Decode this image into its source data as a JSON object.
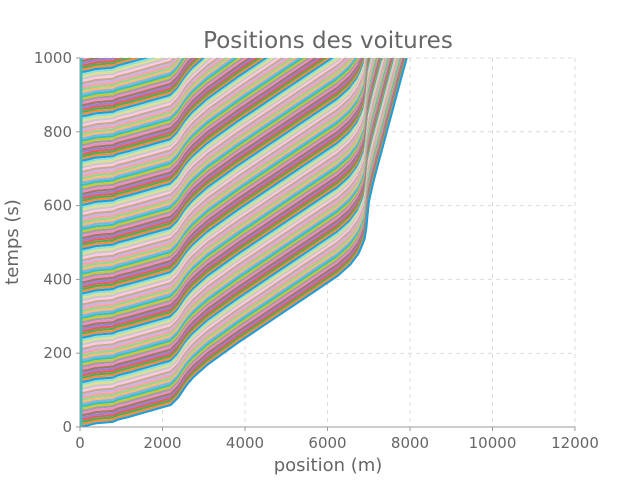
{
  "chart_data": {
    "type": "line",
    "title": "Positions des voitures",
    "xlabel": "position (m)",
    "ylabel": "temps (s)",
    "xlim": [
      0,
      12000
    ],
    "ylim": [
      0,
      1000
    ],
    "x_ticks": [
      0,
      2000,
      4000,
      6000,
      8000,
      10000,
      12000
    ],
    "y_ticks": [
      0,
      200,
      400,
      600,
      800,
      1000
    ],
    "x_tick_labels": [
      "0",
      "2000",
      "4000",
      "6000",
      "8000",
      "10000",
      "12000"
    ],
    "y_tick_labels": [
      "0",
      "200",
      "400",
      "600",
      "800",
      "1000"
    ],
    "grid": true,
    "legend": "none",
    "series_count": 180,
    "series_spacing_time": 6,
    "trajectory_template": {
      "time": [
        0,
        2,
        5,
        10,
        14,
        20,
        28,
        36,
        44,
        52,
        60,
        70,
        80,
        90,
        100,
        110,
        120,
        135,
        150,
        170,
        190,
        210,
        230,
        260,
        290,
        320,
        350,
        380,
        410,
        440,
        470,
        490,
        510,
        540,
        575,
        610,
        660,
        710,
        760,
        810,
        860,
        910,
        960,
        1000
      ],
      "position": [
        0,
        60,
        200,
        380,
        800,
        920,
        1200,
        1450,
        1700,
        1950,
        2200,
        2290,
        2380,
        2440,
        2500,
        2560,
        2630,
        2750,
        2900,
        3100,
        3350,
        3600,
        3850,
        4250,
        4650,
        5050,
        5450,
        5850,
        6250,
        6550,
        6750,
        6830,
        6900,
        6940,
        6970,
        7000,
        7100,
        7220,
        7340,
        7460,
        7580,
        7700,
        7820,
        7920
      ]
    },
    "colors": [
      "#1f9fd8",
      "#ff8a3d",
      "#4caf50",
      "#e85c5c",
      "#9b7fd4",
      "#a0785a",
      "#f08cc8",
      "#9e9e9e",
      "#c8c832",
      "#31c2c2",
      "#7fb3e0",
      "#ffb870",
      "#90d890",
      "#ffa0a0",
      "#c8b4e8",
      "#c8a886",
      "#ffc8e6",
      "#c8c8c8",
      "#e0e08a",
      "#8ee0e0"
    ]
  }
}
